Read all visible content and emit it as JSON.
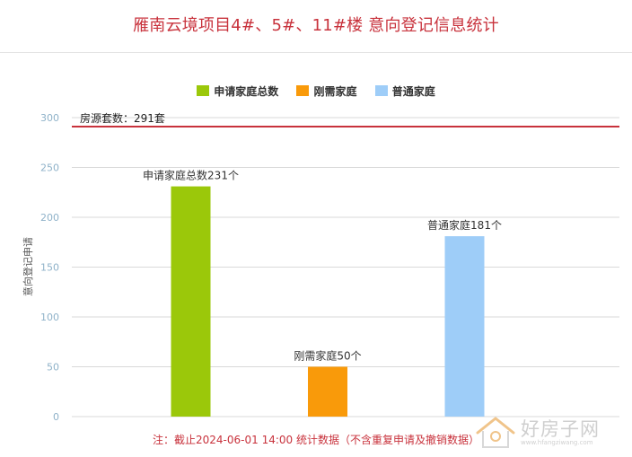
{
  "title": "雁南云境项目4#、5#、11#楼 意向登记信息统计",
  "note": "注：截止2024-06-01 14:00 统计数据（不含重复申请及撤销数据）",
  "watermark": {
    "text": "好房子网",
    "url": "www.hfangziwang.com"
  },
  "colors": {
    "title": "#c8323c",
    "total": "#9bc80a",
    "urgent": "#f99a0a",
    "normal": "#9ecdf8",
    "reference_line": "#c8323c",
    "grid": "#d9d9d9",
    "axis_text": "#8fb2c9"
  },
  "chart_data": {
    "type": "bar",
    "categories": [
      "申请家庭总数",
      "刚需家庭",
      "普通家庭"
    ],
    "series": [
      {
        "name": "申请家庭总数",
        "values": [
          231,
          null,
          null
        ],
        "color": "#9bc80a",
        "label": "申请家庭总数231个"
      },
      {
        "name": "刚需家庭",
        "values": [
          null,
          50,
          null
        ],
        "color": "#f99a0a",
        "label": "刚需家庭50个"
      },
      {
        "name": "普通家庭",
        "values": [
          null,
          null,
          181
        ],
        "color": "#9ecdf8",
        "label": "普通家庭181个"
      }
    ],
    "ylabel": "意向登记申请",
    "xlabel": "",
    "ylim": [
      0,
      300
    ],
    "yticks": [
      0,
      50,
      100,
      150,
      200,
      250,
      300
    ],
    "reference_line": {
      "value": 291,
      "label": "房源套数：291套"
    },
    "grid": true,
    "legend_position": "top-center"
  }
}
